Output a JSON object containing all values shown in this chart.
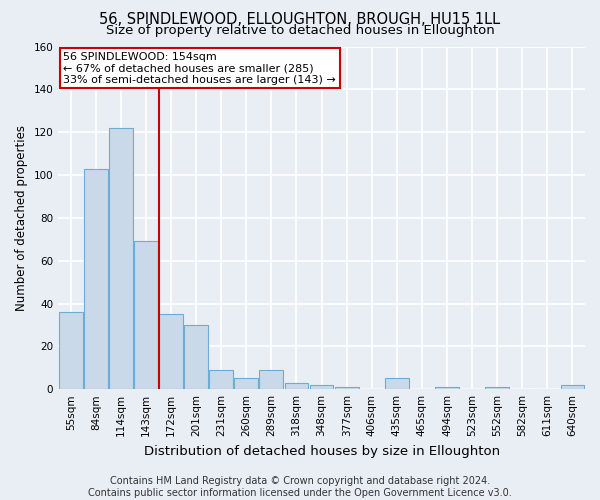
{
  "title": "56, SPINDLEWOOD, ELLOUGHTON, BROUGH, HU15 1LL",
  "subtitle": "Size of property relative to detached houses in Elloughton",
  "xlabel": "Distribution of detached houses by size in Elloughton",
  "ylabel": "Number of detached properties",
  "categories": [
    "55sqm",
    "84sqm",
    "114sqm",
    "143sqm",
    "172sqm",
    "201sqm",
    "231sqm",
    "260sqm",
    "289sqm",
    "318sqm",
    "348sqm",
    "377sqm",
    "406sqm",
    "435sqm",
    "465sqm",
    "494sqm",
    "523sqm",
    "552sqm",
    "582sqm",
    "611sqm",
    "640sqm"
  ],
  "values": [
    36,
    103,
    122,
    69,
    35,
    30,
    9,
    5,
    9,
    3,
    2,
    1,
    0,
    5,
    0,
    1,
    0,
    1,
    0,
    0,
    2
  ],
  "bar_color": "#c9d9ea",
  "bar_edge_color": "#6aaed6",
  "vline_color": "#cc0000",
  "annotation_text": "56 SPINDLEWOOD: 154sqm\n← 67% of detached houses are smaller (285)\n33% of semi-detached houses are larger (143) →",
  "annotation_box_facecolor": "#ffffff",
  "annotation_box_edgecolor": "#cc0000",
  "ylim": [
    0,
    160
  ],
  "yticks": [
    0,
    20,
    40,
    60,
    80,
    100,
    120,
    140,
    160
  ],
  "background_color": "#e8eef4",
  "grid_color": "#ffffff",
  "title_fontsize": 10.5,
  "subtitle_fontsize": 9.5,
  "xlabel_fontsize": 9.5,
  "ylabel_fontsize": 8.5,
  "tick_fontsize": 7.5,
  "annotation_fontsize": 8,
  "footer_fontsize": 7,
  "footer_line1": "Contains HM Land Registry data © Crown copyright and database right 2024.",
  "footer_line2": "Contains public sector information licensed under the Open Government Licence v3.0."
}
